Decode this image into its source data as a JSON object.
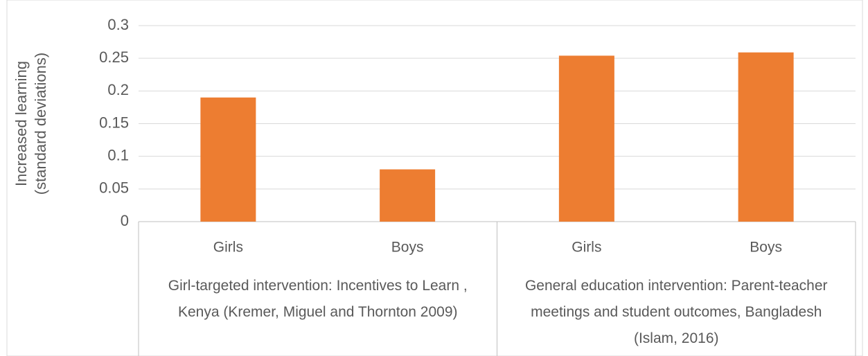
{
  "chart_data": {
    "type": "bar",
    "y_label": [
      "Increased learning",
      "(standard deviations)"
    ],
    "categories": [
      "Girls",
      "Boys",
      "Girls",
      "Boys"
    ],
    "groups": [
      "Girl-targeted intervention: Incentives to Learn , Kenya (Kremer, Miguel and Thornton 2009)",
      "General education intervention: Parent-teacher meetings and student outcomes, Bangladesh (Islam, 2016)"
    ],
    "values": [
      0.19,
      0.08,
      0.254,
      0.259
    ],
    "color": "#ed7d31",
    "ylim": [
      0,
      0.3
    ],
    "yticks": [
      0,
      0.05,
      0.1,
      0.15,
      0.2,
      0.25,
      0.3
    ],
    "grid": true
  }
}
